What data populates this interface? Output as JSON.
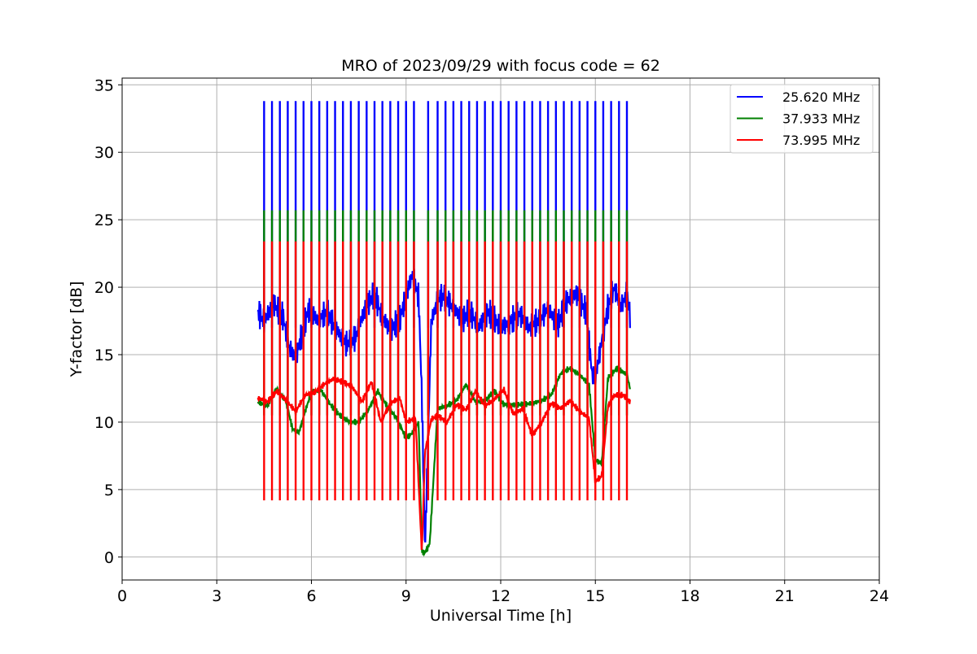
{
  "chart_data": {
    "type": "line",
    "title": "MRO of 2023/09/29 with focus code = 62",
    "xlabel": "Universal Time [h]",
    "ylabel": "Y-factor [dB]",
    "xlim": [
      0,
      24
    ],
    "ylim": [
      -1.7,
      35.5
    ],
    "xticks": [
      0,
      3,
      6,
      9,
      12,
      15,
      18,
      21,
      24
    ],
    "xtick_labels": [
      "0",
      "3",
      "6",
      "9",
      "12",
      "15",
      "18",
      "21",
      "24"
    ],
    "yticks": [
      0,
      5,
      10,
      15,
      20,
      25,
      30,
      35
    ],
    "ytick_labels": [
      "0",
      "5",
      "10",
      "15",
      "20",
      "25",
      "30",
      "35"
    ],
    "grid": true,
    "legend_position": "top-right",
    "spikes": {
      "times": [
        4.5,
        4.75,
        5.0,
        5.25,
        5.5,
        5.75,
        6.0,
        6.25,
        6.5,
        6.75,
        7.0,
        7.25,
        7.5,
        7.75,
        8.0,
        8.25,
        8.5,
        8.75,
        9.0,
        9.25,
        9.7,
        10.0,
        10.25,
        10.5,
        10.75,
        11.0,
        11.25,
        11.5,
        11.75,
        12.0,
        12.25,
        12.5,
        12.75,
        13.0,
        13.25,
        13.5,
        13.75,
        14.0,
        14.25,
        14.5,
        14.75,
        15.0,
        15.25,
        15.5,
        15.75,
        16.0
      ],
      "note_dropout_time": 9.55
    },
    "series": [
      {
        "name": "25.620 MHz",
        "color": "#0000ff",
        "spike_peak": 33.8,
        "spike_trough": 17.0,
        "x": [
          4.3,
          4.5,
          4.8,
          5.1,
          5.3,
          5.5,
          5.7,
          5.9,
          6.2,
          6.5,
          6.8,
          7.1,
          7.4,
          7.7,
          8.0,
          8.2,
          8.5,
          8.8,
          9.0,
          9.2,
          9.4,
          9.5,
          9.6,
          9.8,
          10.0,
          10.2,
          10.5,
          10.8,
          11.0,
          11.3,
          11.6,
          12.0,
          12.3,
          12.6,
          12.9,
          13.2,
          13.5,
          13.8,
          14.1,
          14.4,
          14.7,
          14.9,
          15.0,
          15.2,
          15.4,
          15.6,
          15.8,
          16.0,
          16.1
        ],
        "y": [
          18.2,
          17.5,
          18.8,
          17.8,
          15.5,
          14.8,
          16.5,
          18.3,
          17.6,
          18.1,
          16.8,
          15.8,
          16.3,
          18.4,
          19.6,
          18.0,
          16.8,
          17.6,
          19.3,
          21.0,
          19.2,
          12.0,
          0.5,
          17.5,
          19.0,
          19.4,
          18.4,
          17.6,
          18.3,
          17.0,
          18.2,
          17.0,
          17.4,
          18.0,
          17.0,
          17.5,
          18.4,
          17.2,
          19.0,
          19.5,
          18.2,
          13.5,
          13.2,
          16.0,
          18.5,
          20.0,
          18.5,
          19.5,
          18.0
        ]
      },
      {
        "name": "37.933 MHz",
        "color": "#008000",
        "spike_peak": 25.7,
        "spike_trough": 10.5,
        "x": [
          4.3,
          4.6,
          4.9,
          5.2,
          5.4,
          5.6,
          5.8,
          6.0,
          6.3,
          6.6,
          6.9,
          7.2,
          7.5,
          7.8,
          8.1,
          8.4,
          8.7,
          9.0,
          9.2,
          9.4,
          9.5,
          9.6,
          9.75,
          10.0,
          10.3,
          10.6,
          10.9,
          11.2,
          11.5,
          11.8,
          12.1,
          12.4,
          12.7,
          13.0,
          13.3,
          13.6,
          13.9,
          14.2,
          14.5,
          14.8,
          15.0,
          15.2,
          15.4,
          15.7,
          16.0,
          16.1
        ],
        "y": [
          11.5,
          11.2,
          12.5,
          11.5,
          9.5,
          9.2,
          10.8,
          12.2,
          12.4,
          11.3,
          10.5,
          10.0,
          10.0,
          10.9,
          12.3,
          11.2,
          10.3,
          8.8,
          9.2,
          10.0,
          0.4,
          0.3,
          1.0,
          11.0,
          11.2,
          11.6,
          12.8,
          11.5,
          11.6,
          12.3,
          11.3,
          11.3,
          11.3,
          11.4,
          11.6,
          12.0,
          13.6,
          14.0,
          13.5,
          12.8,
          7.2,
          6.9,
          13.3,
          14.0,
          13.5,
          12.5
        ]
      },
      {
        "name": "73.995 MHz",
        "color": "#ff0000",
        "spike_peak": 23.4,
        "spike_trough": 4.2,
        "x": [
          4.3,
          4.6,
          4.9,
          5.2,
          5.5,
          5.8,
          6.1,
          6.4,
          6.7,
          7.0,
          7.3,
          7.6,
          7.9,
          8.2,
          8.5,
          8.8,
          9.0,
          9.3,
          9.5,
          9.6,
          9.8,
          10.0,
          10.3,
          10.6,
          10.9,
          11.2,
          11.5,
          11.8,
          12.1,
          12.4,
          12.7,
          13.0,
          13.3,
          13.6,
          13.9,
          14.2,
          14.5,
          14.8,
          15.0,
          15.2,
          15.4,
          15.6,
          15.9,
          16.1
        ],
        "y": [
          11.8,
          11.5,
          12.3,
          11.6,
          10.8,
          12.0,
          12.2,
          12.8,
          13.2,
          13.0,
          12.6,
          11.5,
          13.0,
          10.0,
          11.4,
          11.8,
          10.0,
          10.3,
          0.3,
          7.8,
          10.2,
          10.5,
          10.0,
          11.3,
          10.9,
          12.3,
          11.2,
          11.7,
          12.4,
          10.6,
          11.0,
          9.0,
          10.0,
          11.4,
          11.0,
          11.6,
          10.8,
          10.3,
          5.6,
          6.0,
          11.2,
          12.0,
          12.0,
          11.5
        ]
      }
    ]
  }
}
